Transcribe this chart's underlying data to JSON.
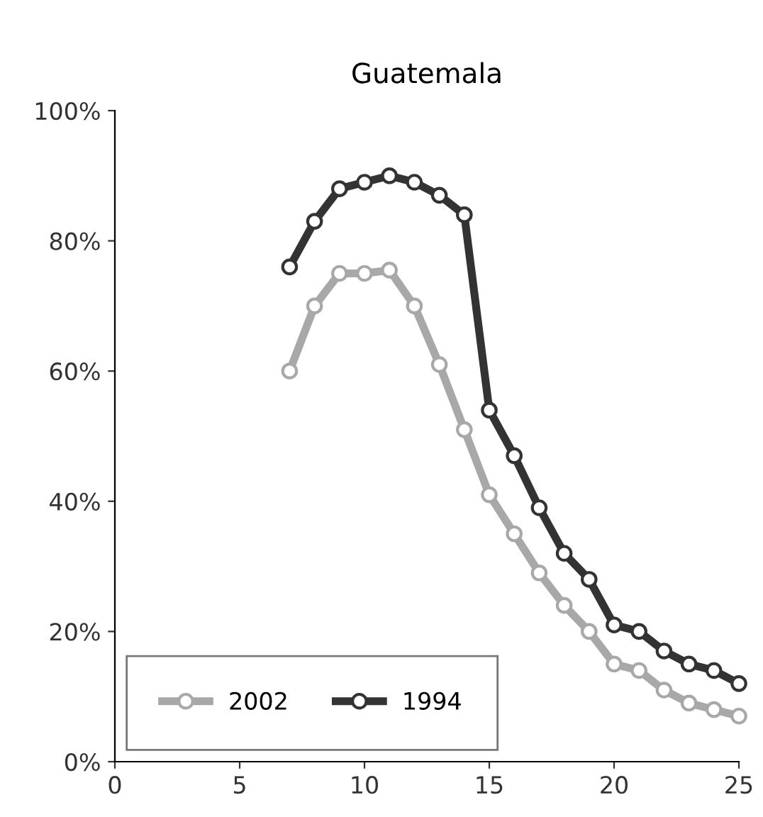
{
  "chart_data": {
    "type": "line",
    "title": "Guatemala",
    "x": [
      7,
      8,
      9,
      10,
      11,
      12,
      13,
      14,
      15,
      16,
      17,
      18,
      19,
      20,
      21,
      22,
      23,
      24,
      25
    ],
    "series": [
      {
        "name": "2002",
        "color": "#a8a8a8",
        "values": [
          60,
          70,
          75,
          75,
          75.5,
          70,
          61,
          51,
          41,
          35,
          29,
          24,
          20,
          15,
          14,
          11,
          9,
          8,
          7
        ]
      },
      {
        "name": "1994",
        "color": "#333333",
        "values": [
          76,
          83,
          88,
          89,
          90,
          89,
          87,
          84,
          54,
          47,
          39,
          32,
          28,
          21,
          20,
          17,
          15,
          14,
          12
        ]
      }
    ],
    "xlim": [
      0,
      25
    ],
    "xticks": [
      0,
      5,
      10,
      15,
      20,
      25
    ],
    "ylim": [
      0,
      100
    ],
    "yticks": [
      {
        "value": 0,
        "label": "0%"
      },
      {
        "value": 20,
        "label": "20%"
      },
      {
        "value": 40,
        "label": "40%"
      },
      {
        "value": 60,
        "label": "60%"
      },
      {
        "value": 80,
        "label": "80%"
      },
      {
        "value": 100,
        "label": "100%"
      }
    ],
    "marker": "circle",
    "line_style": "solid",
    "grid": false,
    "legend": "bottom left"
  }
}
